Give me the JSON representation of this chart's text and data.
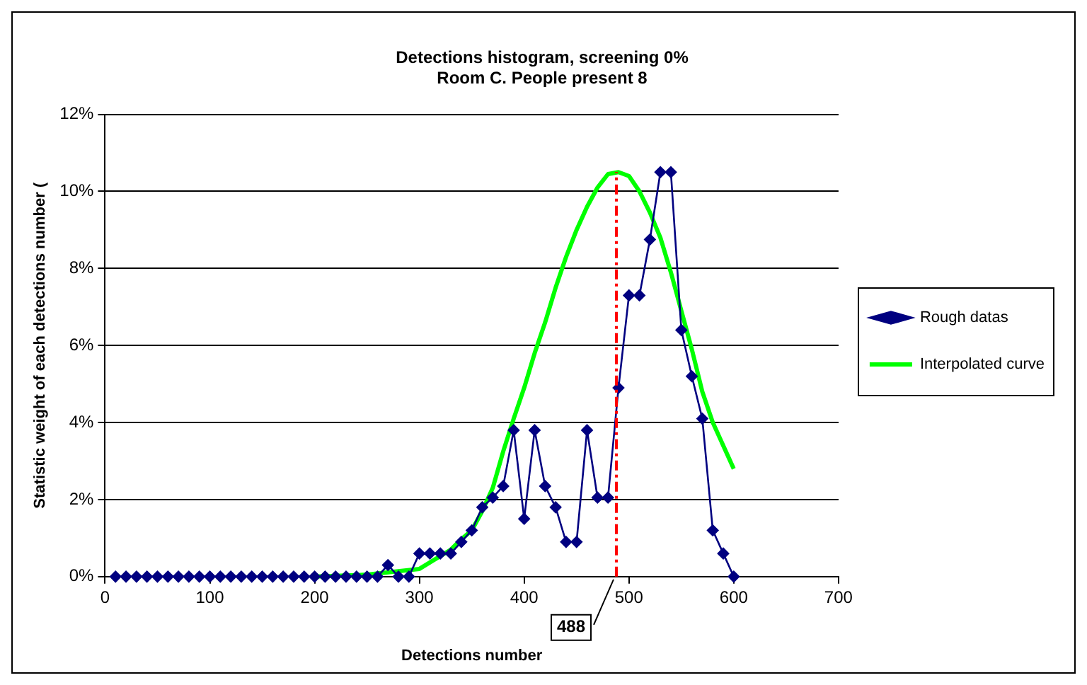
{
  "chart_data": {
    "type": "line",
    "title": "Detections histogram, screening 0%",
    "subtitle": "Room C. People present 8",
    "xlabel": "Detections number",
    "ylabel": "Statistic weight of each detections number (",
    "xlim": [
      0,
      700
    ],
    "xticks": [
      0,
      100,
      200,
      300,
      400,
      500,
      600,
      700
    ],
    "ylim": [
      0,
      12
    ],
    "yticks": [
      {
        "value": 0,
        "label": "0%"
      },
      {
        "value": 2,
        "label": "2%"
      },
      {
        "value": 4,
        "label": "4%"
      },
      {
        "value": 6,
        "label": "6%"
      },
      {
        "value": 8,
        "label": "8%"
      },
      {
        "value": 10,
        "label": "10%"
      },
      {
        "value": 12,
        "label": "12%"
      }
    ],
    "grid": "y",
    "legend": "right",
    "series": [
      {
        "name": "Rough datas",
        "color": "#000080",
        "marker": "diamond",
        "x": [
          10,
          20,
          30,
          40,
          50,
          60,
          70,
          80,
          90,
          100,
          110,
          120,
          130,
          140,
          150,
          160,
          170,
          180,
          190,
          200,
          210,
          220,
          230,
          240,
          250,
          260,
          270,
          280,
          290,
          300,
          310,
          320,
          330,
          340,
          350,
          360,
          370,
          380,
          390,
          400,
          410,
          420,
          430,
          440,
          450,
          460,
          470,
          480,
          490,
          500,
          510,
          520,
          530,
          540,
          550,
          560,
          570,
          580,
          590,
          600
        ],
        "values": [
          0,
          0,
          0,
          0,
          0,
          0,
          0,
          0,
          0,
          0,
          0,
          0,
          0,
          0,
          0,
          0,
          0,
          0,
          0,
          0,
          0,
          0,
          0,
          0,
          0,
          0,
          0.3,
          0,
          0,
          0.6,
          0.6,
          0.6,
          0.6,
          0.9,
          1.2,
          1.8,
          2.05,
          2.35,
          3.8,
          1.5,
          3.8,
          2.35,
          1.8,
          0.9,
          0.9,
          3.8,
          2.05,
          2.05,
          4.9,
          7.3,
          7.3,
          8.75,
          10.5,
          10.5,
          6.4,
          5.2,
          4.1,
          1.2,
          0.6,
          0
        ]
      },
      {
        "name": "Interpolated curve",
        "color": "#00ff00",
        "marker": "none",
        "x": [
          200,
          250,
          300,
          330,
          340,
          350,
          360,
          370,
          380,
          390,
          400,
          410,
          420,
          430,
          440,
          450,
          460,
          470,
          480,
          490,
          500,
          510,
          520,
          530,
          540,
          550,
          560,
          570,
          580,
          590,
          600
        ],
        "values": [
          0,
          0.05,
          0.2,
          0.7,
          0.97,
          1.2,
          1.7,
          2.3,
          3.25,
          4.1,
          4.9,
          5.8,
          6.6,
          7.5,
          8.3,
          9.0,
          9.6,
          10.1,
          10.45,
          10.5,
          10.4,
          10.0,
          9.45,
          8.8,
          7.9,
          6.9,
          5.9,
          4.8,
          4.0,
          3.4,
          2.8
        ]
      }
    ],
    "ref_lines": [
      {
        "axis": "x",
        "value": 488,
        "label": "488",
        "color": "#ff0000",
        "line_style": "dashdot"
      }
    ]
  }
}
